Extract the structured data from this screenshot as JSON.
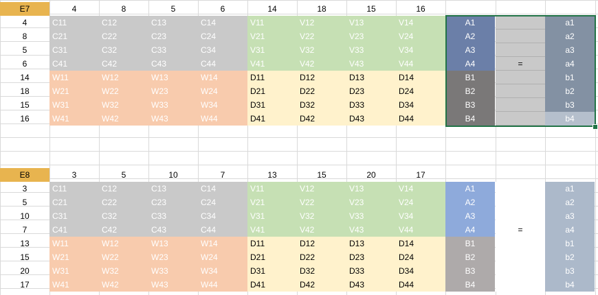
{
  "colors": {
    "corner": "#e8b44f",
    "c_block": "#c9c9c9",
    "v_block": "#c6e0b4",
    "w_block": "#f8cbad",
    "d_block": "#fff2cc",
    "selection": "#217346"
  },
  "table1": {
    "corner": "E7",
    "col_headers": [
      "4",
      "8",
      "5",
      "6",
      "14",
      "18",
      "15",
      "16"
    ],
    "row_headers": [
      "4",
      "8",
      "5",
      "6",
      "14",
      "18",
      "15",
      "16"
    ],
    "rows": [
      [
        "C11",
        "C12",
        "C13",
        "C14",
        "V11",
        "V12",
        "V13",
        "V14"
      ],
      [
        "C21",
        "C22",
        "C23",
        "C24",
        "V21",
        "V22",
        "V23",
        "V24"
      ],
      [
        "C31",
        "C32",
        "C33",
        "C34",
        "V31",
        "V32",
        "V33",
        "V34"
      ],
      [
        "C41",
        "C42",
        "C43",
        "C44",
        "V41",
        "V42",
        "V43",
        "V44"
      ],
      [
        "W11",
        "W12",
        "W13",
        "W14",
        "D11",
        "D12",
        "D13",
        "D14"
      ],
      [
        "W21",
        "W22",
        "W23",
        "W24",
        "D21",
        "D22",
        "D23",
        "D24"
      ],
      [
        "W31",
        "W32",
        "W33",
        "W34",
        "D31",
        "D32",
        "D33",
        "D34"
      ],
      [
        "W41",
        "W42",
        "W43",
        "W44",
        "D41",
        "D42",
        "D43",
        "D44"
      ]
    ],
    "vec_left": [
      "A1",
      "A2",
      "A3",
      "A4",
      "B1",
      "B2",
      "B3",
      "B4"
    ],
    "equals": "=",
    "vec_right": [
      "a1",
      "a2",
      "a3",
      "a4",
      "b1",
      "b2",
      "b3",
      "b4"
    ]
  },
  "table2": {
    "corner": "E8",
    "col_headers": [
      "3",
      "5",
      "10",
      "7",
      "13",
      "15",
      "20",
      "17"
    ],
    "row_headers": [
      "3",
      "5",
      "10",
      "7",
      "13",
      "15",
      "20",
      "17"
    ],
    "rows": [
      [
        "C11",
        "C12",
        "C13",
        "C14",
        "V11",
        "V12",
        "V13",
        "V14"
      ],
      [
        "C21",
        "C22",
        "C23",
        "C24",
        "V21",
        "V22",
        "V23",
        "V24"
      ],
      [
        "C31",
        "C32",
        "C33",
        "C34",
        "V31",
        "V32",
        "V33",
        "V34"
      ],
      [
        "C41",
        "C42",
        "C43",
        "C44",
        "V41",
        "V42",
        "V43",
        "V44"
      ],
      [
        "W11",
        "W12",
        "W13",
        "W14",
        "D11",
        "D12",
        "D13",
        "D14"
      ],
      [
        "W21",
        "W22",
        "W23",
        "W24",
        "D21",
        "D22",
        "D23",
        "D24"
      ],
      [
        "W31",
        "W32",
        "W33",
        "W34",
        "D31",
        "D32",
        "D33",
        "D34"
      ],
      [
        "W41",
        "W42",
        "W43",
        "W44",
        "D41",
        "D42",
        "D43",
        "D44"
      ]
    ],
    "vec_left": [
      "A1",
      "A2",
      "A3",
      "A4",
      "B1",
      "B2",
      "B3",
      "B4"
    ],
    "equals": "=",
    "vec_right": [
      "a1",
      "a2",
      "a3",
      "a4",
      "b1",
      "b2",
      "b3",
      "b4"
    ]
  }
}
